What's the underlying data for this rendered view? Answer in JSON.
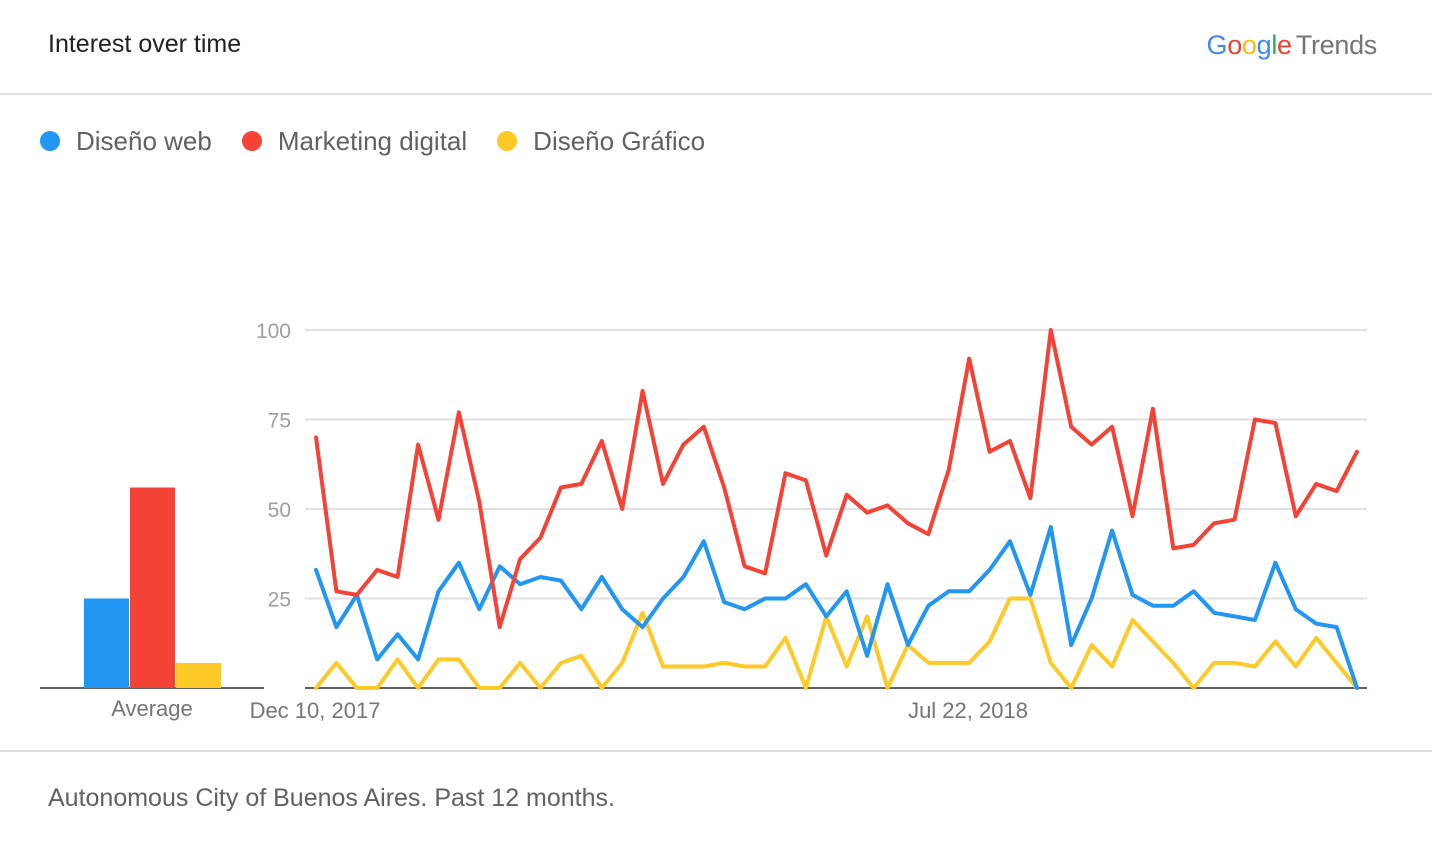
{
  "header": {
    "title": "Interest over time",
    "logo_google": "Google",
    "logo_trends": "Trends"
  },
  "legend": [
    {
      "label": "Diseño web",
      "color": "#2196f3"
    },
    {
      "label": "Marketing digital",
      "color": "#f44336"
    },
    {
      "label": "Diseño Gráfico",
      "color": "#ffca28"
    }
  ],
  "footer": {
    "text": "Autonomous City of Buenos Aires. Past 12 months."
  },
  "chart_data": [
    {
      "type": "bar",
      "categories": [
        "Average"
      ],
      "series": [
        {
          "name": "Diseño web",
          "values": [
            25
          ],
          "color": "#2196f3"
        },
        {
          "name": "Marketing digital",
          "values": [
            56
          ],
          "color": "#f44336"
        },
        {
          "name": "Diseño Gráfico",
          "values": [
            7
          ],
          "color": "#ffca28"
        }
      ],
      "ylim": [
        0,
        100
      ]
    },
    {
      "type": "line",
      "x_tick_labels": [
        "Dec 10, 2017",
        "Jul 22, 2018"
      ],
      "y_ticks": [
        "100",
        "75",
        "50",
        "25"
      ],
      "ylim": [
        0,
        100
      ],
      "grid": true,
      "series": [
        {
          "name": "Diseño web",
          "color": "#2196f3",
          "values": [
            33,
            17,
            26,
            8,
            15,
            8,
            27,
            35,
            22,
            34,
            29,
            31,
            30,
            22,
            31,
            22,
            17,
            25,
            31,
            41,
            24,
            22,
            25,
            25,
            29,
            20,
            27,
            9,
            29,
            12,
            23,
            27,
            27,
            33,
            41,
            26,
            45,
            12,
            25,
            44,
            26,
            23,
            23,
            27,
            21,
            20,
            19,
            35,
            22,
            18,
            17,
            0
          ]
        },
        {
          "name": "Marketing digital",
          "color": "#f44336",
          "values": [
            70,
            27,
            26,
            33,
            31,
            68,
            47,
            77,
            52,
            17,
            36,
            42,
            56,
            57,
            69,
            50,
            83,
            57,
            68,
            73,
            56,
            34,
            32,
            60,
            58,
            37,
            54,
            49,
            51,
            46,
            43,
            61,
            92,
            66,
            69,
            53,
            100,
            73,
            68,
            73,
            48,
            78,
            39,
            40,
            46,
            47,
            75,
            74,
            48,
            57,
            55,
            66
          ]
        },
        {
          "name": "Diseño Gráfico",
          "color": "#ffca28",
          "values": [
            0,
            7,
            0,
            0,
            8,
            0,
            8,
            8,
            0,
            0,
            7,
            0,
            7,
            9,
            0,
            7,
            21,
            6,
            6,
            6,
            7,
            6,
            6,
            14,
            0,
            20,
            6,
            20,
            0,
            12,
            7,
            7,
            7,
            13,
            25,
            25,
            7,
            0,
            12,
            6,
            19,
            13,
            7,
            0,
            7,
            7,
            6,
            13,
            6,
            14,
            7,
            0
          ]
        }
      ]
    }
  ]
}
